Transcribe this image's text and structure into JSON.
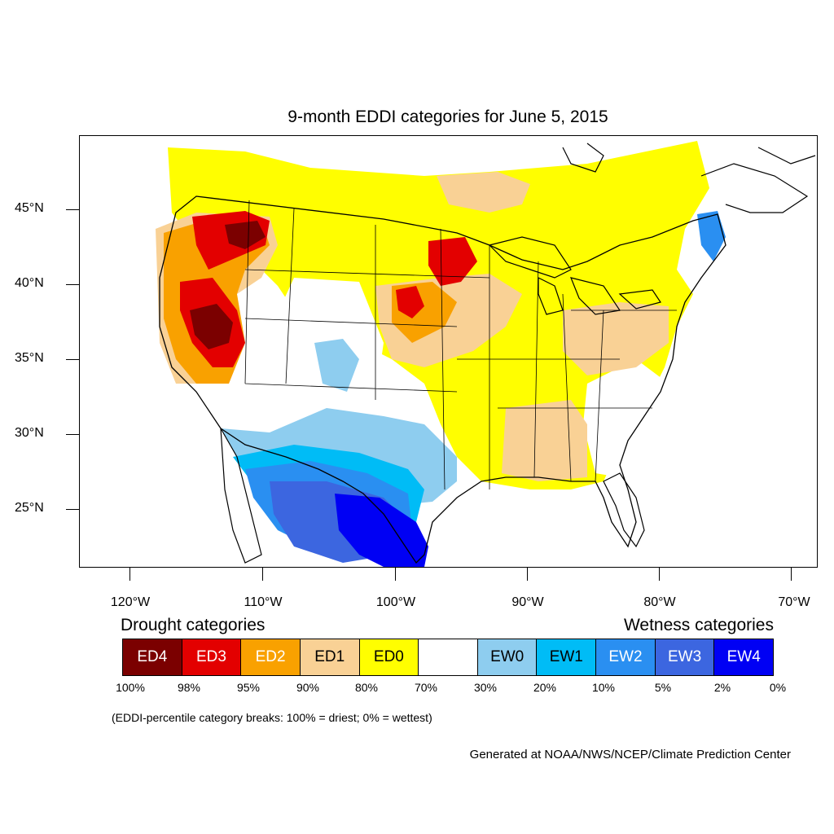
{
  "title": "9-month EDDI categories for June 5, 2015",
  "map": {
    "latitude_labels": [
      "45°N",
      "40°N",
      "35°N",
      "30°N",
      "25°N"
    ],
    "longitude_labels": [
      "120°W",
      "110°W",
      "100°W",
      "90°W",
      "80°W",
      "70°W"
    ]
  },
  "legend": {
    "drought_heading": "Drought categories",
    "wetness_heading": "Wetness categories",
    "categories": [
      {
        "label": "ED4",
        "color": "#7b0000",
        "text_color": "#ffffff"
      },
      {
        "label": "ED3",
        "color": "#e30000",
        "text_color": "#ffffff"
      },
      {
        "label": "ED2",
        "color": "#f9a100",
        "text_color": "#ffffff"
      },
      {
        "label": "ED1",
        "color": "#f9d195",
        "text_color": "#000000"
      },
      {
        "label": "ED0",
        "color": "#fffe00",
        "text_color": "#000000"
      },
      {
        "label": "",
        "color": "#ffffff",
        "text_color": "#000000"
      },
      {
        "label": "EW0",
        "color": "#8ecdef",
        "text_color": "#000000"
      },
      {
        "label": "EW1",
        "color": "#00bcf6",
        "text_color": "#000000"
      },
      {
        "label": "EW2",
        "color": "#2a8ff1",
        "text_color": "#ffffff"
      },
      {
        "label": "EW3",
        "color": "#3c66e0",
        "text_color": "#ffffff"
      },
      {
        "label": "EW4",
        "color": "#0000f4",
        "text_color": "#ffffff"
      }
    ],
    "percent_breaks": [
      "100%",
      "98%",
      "95%",
      "90%",
      "80%",
      "70%",
      "30%",
      "20%",
      "10%",
      "5%",
      "2%",
      "0%"
    ],
    "breaks_note": "(EDDI-percentile category breaks: 100% = driest; 0% = wettest)"
  },
  "credit": "Generated at NOAA/NWS/NCEP/Climate Prediction Center"
}
